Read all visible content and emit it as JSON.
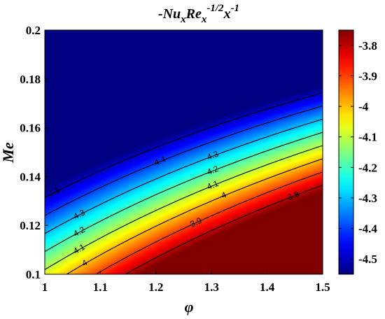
{
  "chart_data": {
    "type": "heatmap",
    "title": {
      "base1": "-Nu",
      "sub1": "x",
      "base2": "Re",
      "sub2": "x",
      "sup2": "-1/2",
      "base3": "x",
      "sup3": "-1"
    },
    "xlabel": "φ",
    "ylabel": "Me",
    "xlim": [
      1,
      1.5
    ],
    "ylim": [
      0.1,
      0.2
    ],
    "xticks": [
      1,
      1.1,
      1.2,
      1.3,
      1.4,
      1.5
    ],
    "xtick_labels": [
      "1",
      "1.1",
      "1.2",
      "1.3",
      "1.4",
      "1.5"
    ],
    "yticks": [
      0.1,
      0.12,
      0.14,
      0.16,
      0.18,
      0.2
    ],
    "ytick_labels": [
      "0.1",
      "0.12",
      "0.14",
      "0.16",
      "0.18",
      "0.2"
    ],
    "colorbar": {
      "range": [
        -4.55,
        -3.75
      ],
      "ticks": [
        -3.8,
        -3.9,
        -4,
        -4.1,
        -4.2,
        -4.3,
        -4.4,
        -4.5
      ],
      "tick_labels": [
        "-3.8",
        "-3.9",
        "-4",
        "-4.1",
        "-4.2",
        "-4.3",
        "-4.4",
        "-4.5"
      ],
      "colormap": "jet"
    },
    "field_model": {
      "description_free": true,
      "v0": -4.4,
      "dv_dx": 1.4,
      "dv_dy": -16,
      "dv_dxy": -10
    },
    "contours": [
      {
        "level": -4.5,
        "label": "-4.5",
        "label_at_x": 1.015
      },
      {
        "level": -4.4,
        "label": "-4.4",
        "label_at_x": 1.205
      },
      {
        "level": -4.3,
        "label": "-4.3",
        "label_at_x": 1.06
      },
      {
        "level": -4.3,
        "label": "-4.3",
        "label_at_x": 1.3
      },
      {
        "level": -4.2,
        "label": "-4.2",
        "label_at_x": 1.06
      },
      {
        "level": -4.2,
        "label": "-4.2",
        "label_at_x": 1.3
      },
      {
        "level": -4.1,
        "label": "-4.1",
        "label_at_x": 1.06
      },
      {
        "level": -4.1,
        "label": "-4.1",
        "label_at_x": 1.3
      },
      {
        "level": -4.0,
        "label": "-4",
        "label_at_x": 1.07
      },
      {
        "level": -4.0,
        "label": "-4",
        "label_at_x": 1.32
      },
      {
        "level": -3.9,
        "label": "-3.9",
        "label_at_x": 1.27
      },
      {
        "level": -3.8,
        "label": "-3.8",
        "label_at_x": 1.445
      }
    ],
    "grid": false
  }
}
